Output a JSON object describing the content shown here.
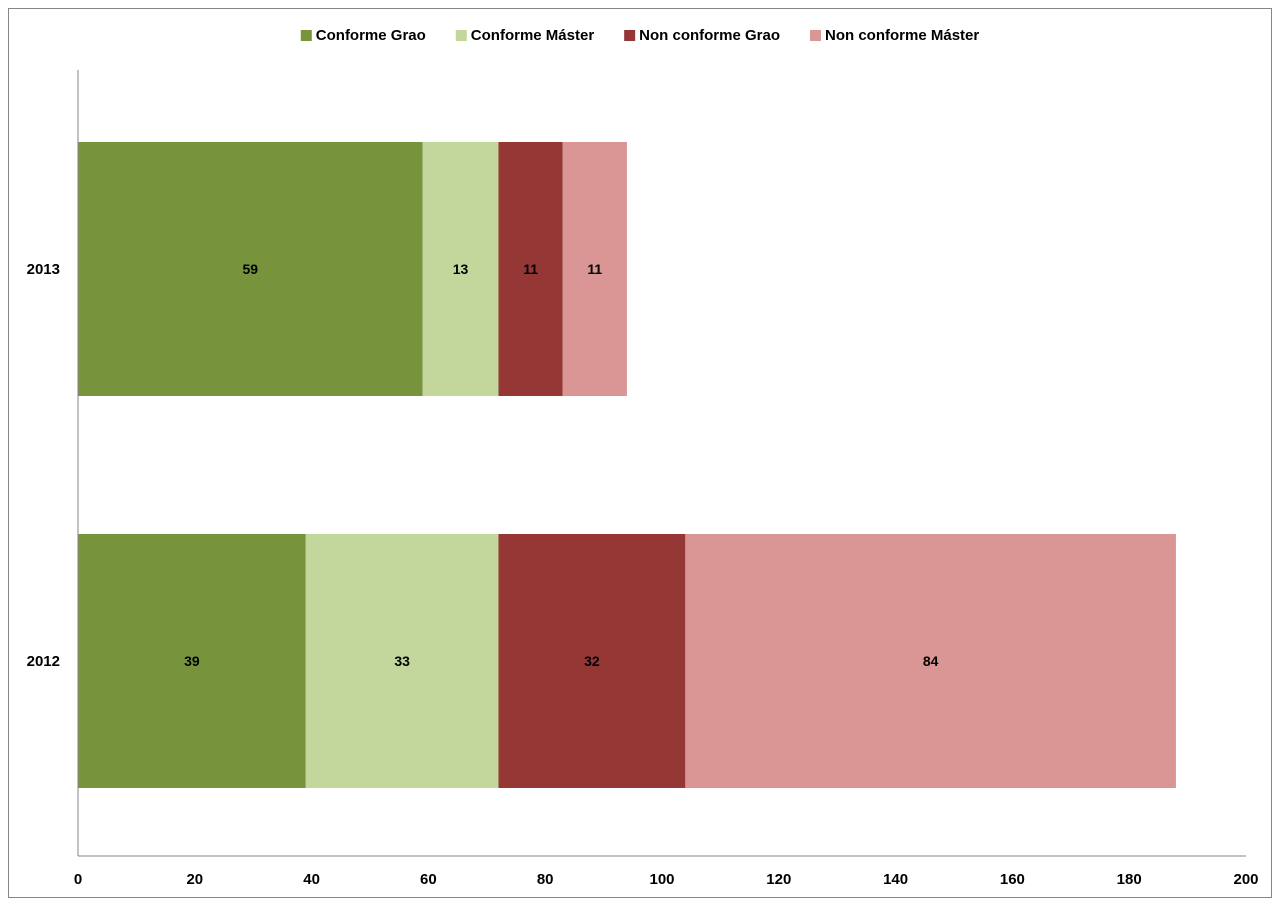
{
  "chart_data": {
    "type": "bar",
    "orientation": "horizontal",
    "stacked": true,
    "categories": [
      "2013",
      "2012"
    ],
    "series": [
      {
        "name": "Conforme Grao",
        "color": "#77933C",
        "values": [
          59,
          39
        ]
      },
      {
        "name": "Conforme Máster",
        "color": "#C3D69B",
        "values": [
          13,
          33
        ]
      },
      {
        "name": "Non conforme Grao",
        "color": "#953735",
        "values": [
          11,
          32
        ]
      },
      {
        "name": "Non conforme Máster",
        "color": "#D99694",
        "values": [
          11,
          84
        ]
      }
    ],
    "xlim": [
      0,
      200
    ],
    "xticks": [
      "0",
      "20",
      "40",
      "60",
      "80",
      "100",
      "120",
      "140",
      "160",
      "180",
      "200"
    ],
    "grid": false,
    "legend_position": "top"
  }
}
